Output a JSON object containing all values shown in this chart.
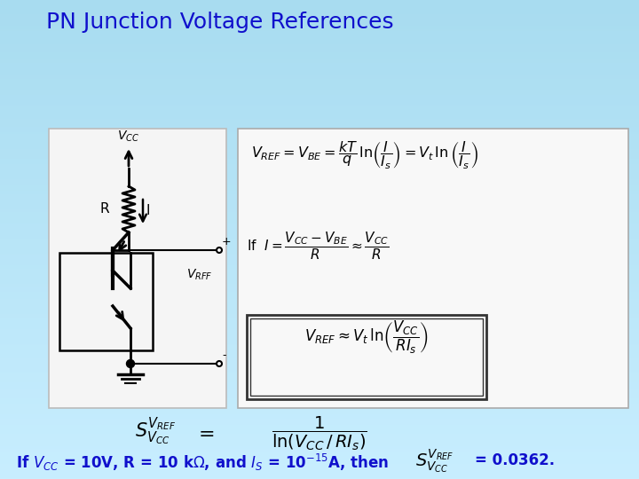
{
  "title": "PN Junction Voltage References",
  "title_color": "#1010CC",
  "title_fontsize": 18,
  "bg_color": "#A8DCF0",
  "formula_box_bg": "#F8F8F8",
  "formula_box_border": "#AAAAAA",
  "formula_color": "#000000",
  "blue_text_color": "#1010CC",
  "inner_box_border": "#333333",
  "circuit_box_bg": "#F5F5F5",
  "circuit_box_border": "#BBBBBB"
}
